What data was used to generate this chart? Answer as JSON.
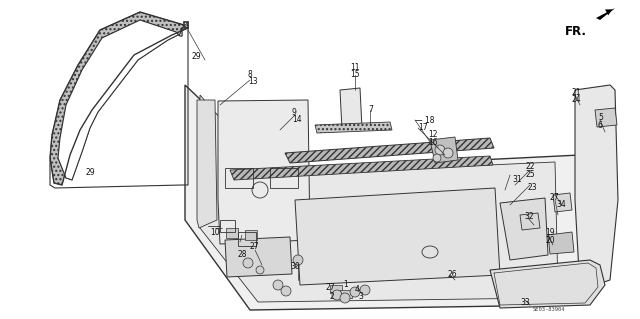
{
  "background_color": "#ffffff",
  "diagram_code": "SE03-83904",
  "line_color": "#333333",
  "text_color": "#111111",
  "fig_width": 6.4,
  "fig_height": 3.19,
  "dpi": 100,
  "label_fontsize": 5.5,
  "fr_fontsize": 8.5,
  "hatch_color": "#888888"
}
